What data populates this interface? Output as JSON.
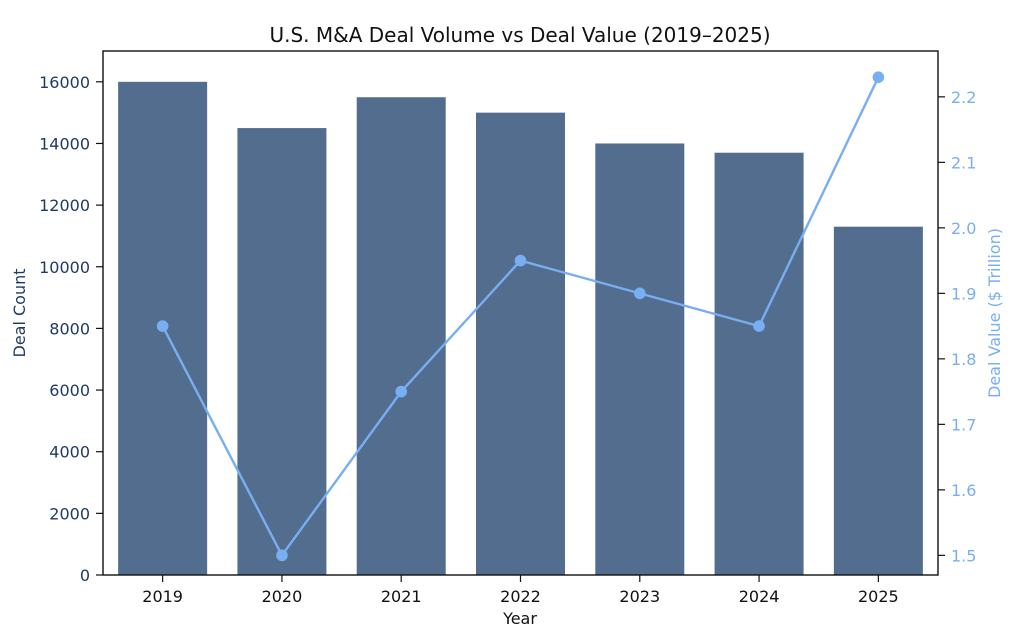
{
  "chart_data": {
    "type": "bar+line",
    "title": "U.S. M&A Deal Volume vs Deal Value (2019–2025)",
    "xlabel": "Year",
    "ylabel_left": "Deal Count",
    "ylabel_right": "Deal Value ($ Trillion)",
    "categories": [
      "2019",
      "2020",
      "2021",
      "2022",
      "2023",
      "2024",
      "2025"
    ],
    "left_axis": {
      "ylim": [
        0,
        17000
      ],
      "ticks": [
        0,
        2000,
        4000,
        6000,
        8000,
        10000,
        12000,
        14000,
        16000
      ]
    },
    "right_axis": {
      "ylim": [
        1.47,
        2.27
      ],
      "ticks": [
        1.5,
        1.6,
        1.7,
        1.8,
        1.9,
        2.0,
        2.1,
        2.2
      ]
    },
    "series": [
      {
        "name": "Deal Count",
        "type": "bar",
        "axis": "left",
        "values": [
          16000,
          14500,
          15500,
          15000,
          14000,
          13700,
          11300
        ]
      },
      {
        "name": "Deal Value ($ Trillion)",
        "type": "line",
        "axis": "right",
        "values": [
          1.85,
          1.5,
          1.75,
          1.95,
          1.9,
          1.85,
          2.23
        ]
      }
    ],
    "colors": {
      "bar": "#536d8f",
      "line": "#78aef2",
      "left_axis_text": "#1f3b63",
      "right_axis_text": "#78aef2",
      "axis": "#111111"
    },
    "grid": false
  }
}
